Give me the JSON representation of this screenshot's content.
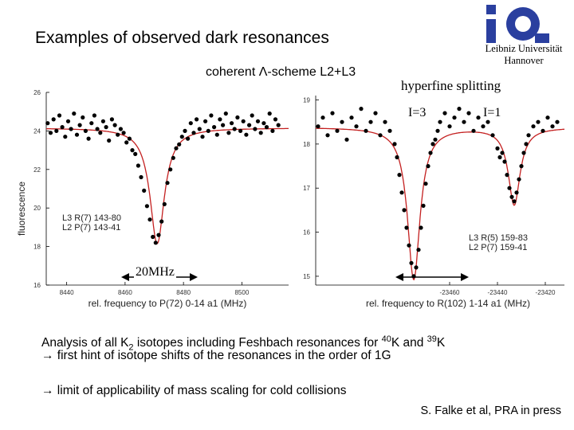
{
  "slide": {
    "title": "Examples of observed dark resonances",
    "institution_line1": "Leibniz Universität",
    "institution_line2": "Hannover",
    "left_scheme_label": "coherent Λ-scheme L2+L3",
    "right_heading": "hyperfine splitting",
    "label_i3": "I=3",
    "label_i1": "I=1",
    "scale_label": "20MHz",
    "line1_pre": "Analysis of all K",
    "line1_sub": "2",
    "line1_mid": " isotopes including Feshbach resonances for ",
    "line1_sup1": "40",
    "line1_k1": "K and ",
    "line1_sup2": "39",
    "line1_k2": "K",
    "line2": " first hint of isotope shifts of the resonances in the order of 1G",
    "line3": " limit of applicability of mass scaling for cold collisions",
    "arrow_glyph": "→",
    "citation": "S. Falke et al, PRA in press",
    "colors": {
      "fit": "#c42020",
      "logo": "#2a3f9f",
      "points": "#000000"
    }
  },
  "chart_data": [
    {
      "type": "scatter",
      "ylabel": "fluorescence",
      "xlabel": "rel. frequency to P(72) 0-14 a1 (MHz)",
      "x_ticks": [
        8440,
        8460,
        8480,
        8500
      ],
      "y_ticks": [
        16,
        18,
        20,
        22,
        24,
        26
      ],
      "xlim": [
        8433,
        8516
      ],
      "ylim": [
        16,
        26
      ],
      "legend": [
        "L3 R(7) 143-80",
        "L2 P(7) 143-41"
      ],
      "legend_position": "bottom-left",
      "fit": {
        "baseline": 24.15,
        "dips": [
          {
            "center": 8471,
            "depth": 6.0,
            "width": 3.0
          }
        ]
      },
      "points": [
        [
          8433.5,
          24.4
        ],
        [
          8434.5,
          23.9
        ],
        [
          8435.5,
          24.6
        ],
        [
          8436.5,
          24.0
        ],
        [
          8437.5,
          24.8
        ],
        [
          8438.5,
          24.2
        ],
        [
          8439.5,
          23.7
        ],
        [
          8440.5,
          24.5
        ],
        [
          8441.5,
          24.1
        ],
        [
          8442.5,
          24.9
        ],
        [
          8443.5,
          23.8
        ],
        [
          8444.5,
          24.3
        ],
        [
          8445.5,
          24.7
        ],
        [
          8446.5,
          24.0
        ],
        [
          8447.5,
          23.6
        ],
        [
          8448.5,
          24.4
        ],
        [
          8449.5,
          24.8
        ],
        [
          8450.5,
          24.1
        ],
        [
          8451.5,
          23.9
        ],
        [
          8452.5,
          24.5
        ],
        [
          8453.5,
          24.2
        ],
        [
          8454.5,
          23.5
        ],
        [
          8455.5,
          24.6
        ],
        [
          8456.5,
          24.3
        ],
        [
          8457.5,
          23.8
        ],
        [
          8458.5,
          24.1
        ],
        [
          8459.5,
          23.9
        ],
        [
          8460.5,
          23.4
        ],
        [
          8461.5,
          23.6
        ],
        [
          8462.5,
          23.0
        ],
        [
          8463.5,
          22.8
        ],
        [
          8464.5,
          22.2
        ],
        [
          8465.5,
          21.6
        ],
        [
          8466.5,
          20.9
        ],
        [
          8467.5,
          20.1
        ],
        [
          8468.5,
          19.4
        ],
        [
          8469.5,
          18.5
        ],
        [
          8470.5,
          18.2
        ],
        [
          8471.5,
          18.6
        ],
        [
          8472.5,
          19.3
        ],
        [
          8473.5,
          20.2
        ],
        [
          8474.5,
          21.3
        ],
        [
          8475.5,
          22.0
        ],
        [
          8476.5,
          22.6
        ],
        [
          8477.5,
          23.1
        ],
        [
          8478.5,
          23.3
        ],
        [
          8479.5,
          23.7
        ],
        [
          8480.5,
          24.0
        ],
        [
          8481.5,
          23.6
        ],
        [
          8482.5,
          24.4
        ],
        [
          8483.5,
          23.9
        ],
        [
          8484.5,
          24.6
        ],
        [
          8485.5,
          24.1
        ],
        [
          8486.5,
          23.7
        ],
        [
          8487.5,
          24.5
        ],
        [
          8488.5,
          24.0
        ],
        [
          8489.5,
          24.8
        ],
        [
          8490.5,
          24.2
        ],
        [
          8491.5,
          23.8
        ],
        [
          8492.5,
          24.6
        ],
        [
          8493.5,
          24.3
        ],
        [
          8494.5,
          24.9
        ],
        [
          8495.5,
          23.9
        ],
        [
          8496.5,
          24.4
        ],
        [
          8497.5,
          24.1
        ],
        [
          8498.5,
          24.7
        ],
        [
          8499.5,
          24.0
        ],
        [
          8500.5,
          24.5
        ],
        [
          8501.5,
          23.8
        ],
        [
          8502.5,
          24.3
        ],
        [
          8503.5,
          24.8
        ],
        [
          8504.5,
          24.1
        ],
        [
          8505.5,
          24.5
        ],
        [
          8506.5,
          23.9
        ],
        [
          8507.5,
          24.4
        ],
        [
          8508.5,
          24.2
        ],
        [
          8509.5,
          24.9
        ],
        [
          8510.5,
          24.0
        ],
        [
          8511.5,
          24.6
        ],
        [
          8512.5,
          24.3
        ]
      ]
    },
    {
      "type": "scatter",
      "xlabel": "rel. frequency to R(102) 1-14 a1 (MHz)",
      "x_ticks": [
        -23460,
        -23440,
        -23420
      ],
      "y_ticks": [
        15,
        16,
        17,
        18,
        19
      ],
      "xlim": [
        -23516,
        -23412
      ],
      "ylim": [
        14.8,
        19.1
      ],
      "legend": [
        "L3 R(5) 159-83",
        "L2 P(7) 159-41"
      ],
      "legend_position": "bottom-right",
      "fit": {
        "baseline": 18.38,
        "dips": [
          {
            "center": -23475,
            "depth": 3.45,
            "width": 3.2
          },
          {
            "center": -23433,
            "depth": 1.75,
            "width": 3.0
          }
        ]
      },
      "points": [
        [
          -23515,
          18.4
        ],
        [
          -23513,
          18.6
        ],
        [
          -23511,
          18.2
        ],
        [
          -23509,
          18.7
        ],
        [
          -23507,
          18.3
        ],
        [
          -23505,
          18.5
        ],
        [
          -23503,
          18.1
        ],
        [
          -23501,
          18.6
        ],
        [
          -23499,
          18.4
        ],
        [
          -23497,
          18.8
        ],
        [
          -23495,
          18.3
        ],
        [
          -23493,
          18.5
        ],
        [
          -23491,
          18.7
        ],
        [
          -23489,
          18.2
        ],
        [
          -23487,
          18.5
        ],
        [
          -23485,
          18.3
        ],
        [
          -23483,
          18.0
        ],
        [
          -23482,
          17.7
        ],
        [
          -23481,
          17.3
        ],
        [
          -23480,
          16.9
        ],
        [
          -23479,
          16.5
        ],
        [
          -23478,
          16.1
        ],
        [
          -23477,
          15.7
        ],
        [
          -23476,
          15.3
        ],
        [
          -23475,
          15.0
        ],
        [
          -23474,
          15.2
        ],
        [
          -23473,
          15.6
        ],
        [
          -23472,
          16.1
        ],
        [
          -23471,
          16.6
        ],
        [
          -23470,
          17.1
        ],
        [
          -23469,
          17.5
        ],
        [
          -23468,
          17.8
        ],
        [
          -23467,
          18.0
        ],
        [
          -23466,
          18.1
        ],
        [
          -23465,
          18.3
        ],
        [
          -23464,
          18.5
        ],
        [
          -23462,
          18.7
        ],
        [
          -23460,
          18.4
        ],
        [
          -23458,
          18.6
        ],
        [
          -23456,
          18.8
        ],
        [
          -23454,
          18.5
        ],
        [
          -23452,
          18.7
        ],
        [
          -23450,
          18.3
        ],
        [
          -23448,
          18.6
        ],
        [
          -23446,
          18.4
        ],
        [
          -23444,
          18.5
        ],
        [
          -23442,
          18.2
        ],
        [
          -23440,
          17.9
        ],
        [
          -23439,
          17.7
        ],
        [
          -23438,
          17.8
        ],
        [
          -23437,
          17.6
        ],
        [
          -23436,
          17.3
        ],
        [
          -23435,
          17.0
        ],
        [
          -23434,
          16.8
        ],
        [
          -23433,
          16.7
        ],
        [
          -23432,
          16.9
        ],
        [
          -23431,
          17.2
        ],
        [
          -23430,
          17.5
        ],
        [
          -23429,
          17.8
        ],
        [
          -23428,
          18.0
        ],
        [
          -23427,
          18.2
        ],
        [
          -23425,
          18.4
        ],
        [
          -23423,
          18.5
        ],
        [
          -23421,
          18.3
        ],
        [
          -23419,
          18.6
        ],
        [
          -23417,
          18.4
        ],
        [
          -23415,
          18.5
        ]
      ]
    }
  ]
}
